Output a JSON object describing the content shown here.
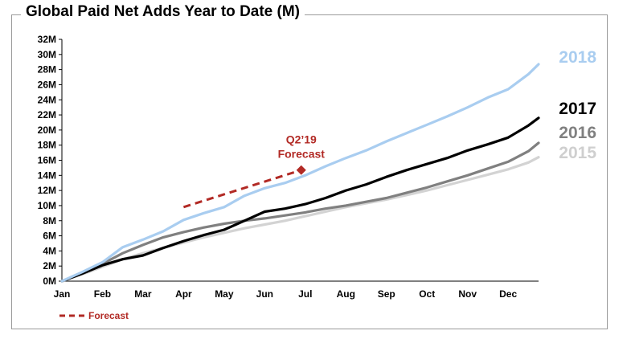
{
  "chart_data": {
    "type": "line",
    "title": "Global Paid Net Adds Year to Date (M)",
    "x_ticks": [
      "Jan",
      "Feb",
      "Mar",
      "Apr",
      "May",
      "Jun",
      "Jul",
      "Aug",
      "Sep",
      "Oct",
      "Nov",
      "Dec"
    ],
    "y_ticks": [
      "0M",
      "2M",
      "4M",
      "6M",
      "8M",
      "10M",
      "12M",
      "14M",
      "16M",
      "18M",
      "20M",
      "22M",
      "24M",
      "26M",
      "28M",
      "30M",
      "32M"
    ],
    "ylim": [
      0,
      32
    ],
    "xlim": [
      0,
      11.75
    ],
    "grid": false,
    "series": [
      {
        "name": "2015",
        "color": "#d3d3d3",
        "x": [
          0,
          0.5,
          1,
          1.5,
          2,
          2.5,
          3,
          3.5,
          4,
          4.5,
          5,
          5.5,
          6,
          6.5,
          7,
          7.5,
          8,
          8.5,
          9,
          9.5,
          10,
          10.5,
          11,
          11.5,
          11.75
        ],
        "y": [
          0,
          0.9,
          1.9,
          2.9,
          3.7,
          4.4,
          5.1,
          5.8,
          6.4,
          7.0,
          7.5,
          8.0,
          8.6,
          9.2,
          9.8,
          10.3,
          10.8,
          11.4,
          12.0,
          12.7,
          13.4,
          14.1,
          14.8,
          15.7,
          16.4
        ]
      },
      {
        "name": "2016",
        "color": "#808080",
        "x": [
          0,
          0.5,
          1,
          1.5,
          2,
          2.5,
          3,
          3.5,
          4,
          4.5,
          5,
          5.5,
          6,
          6.5,
          7,
          7.5,
          8,
          8.5,
          9,
          9.5,
          10,
          10.5,
          11,
          11.5,
          11.75
        ],
        "y": [
          0,
          1.1,
          2.3,
          3.7,
          4.8,
          5.8,
          6.5,
          7.1,
          7.6,
          8.0,
          8.3,
          8.7,
          9.1,
          9.6,
          10.0,
          10.5,
          11.0,
          11.7,
          12.4,
          13.2,
          14.0,
          14.9,
          15.8,
          17.2,
          18.3
        ]
      },
      {
        "name": "2017",
        "color": "#000000",
        "x": [
          0,
          0.5,
          1,
          1.5,
          2,
          2.5,
          3,
          3.5,
          4,
          4.5,
          5,
          5.5,
          6,
          6.5,
          7,
          7.5,
          8,
          8.5,
          9,
          9.5,
          10,
          10.5,
          11,
          11.5,
          11.75
        ],
        "y": [
          0,
          1.0,
          2.1,
          2.9,
          3.4,
          4.4,
          5.3,
          6.1,
          6.8,
          8.0,
          9.2,
          9.6,
          10.2,
          11.0,
          12.0,
          12.8,
          13.8,
          14.7,
          15.5,
          16.3,
          17.3,
          18.1,
          19.0,
          20.6,
          21.6
        ]
      },
      {
        "name": "2018",
        "color": "#a9cdf0",
        "x": [
          0,
          0.5,
          1,
          1.5,
          2,
          2.5,
          3,
          3.5,
          4,
          4.5,
          5,
          5.5,
          6,
          6.5,
          7,
          7.5,
          8,
          8.5,
          9,
          9.5,
          10,
          10.5,
          11,
          11.5,
          11.75
        ],
        "y": [
          0,
          1.2,
          2.5,
          4.5,
          5.5,
          6.6,
          8.1,
          9.0,
          9.8,
          11.3,
          12.3,
          13.0,
          14.0,
          15.2,
          16.3,
          17.3,
          18.5,
          19.6,
          20.7,
          21.8,
          23.0,
          24.3,
          25.4,
          27.4,
          28.7
        ]
      },
      {
        "name": "Forecast",
        "color": "#b22a25",
        "dashed": true,
        "x": [
          3.0,
          5.9
        ],
        "y": [
          9.8,
          14.7
        ]
      }
    ],
    "annotation": {
      "text_line1": "Q2’19",
      "text_line2": "Forecast",
      "x": 5.9,
      "y": 14.7
    },
    "legend": {
      "position": "bottom-left",
      "label": "Forecast"
    },
    "series_labels_position": "right"
  }
}
